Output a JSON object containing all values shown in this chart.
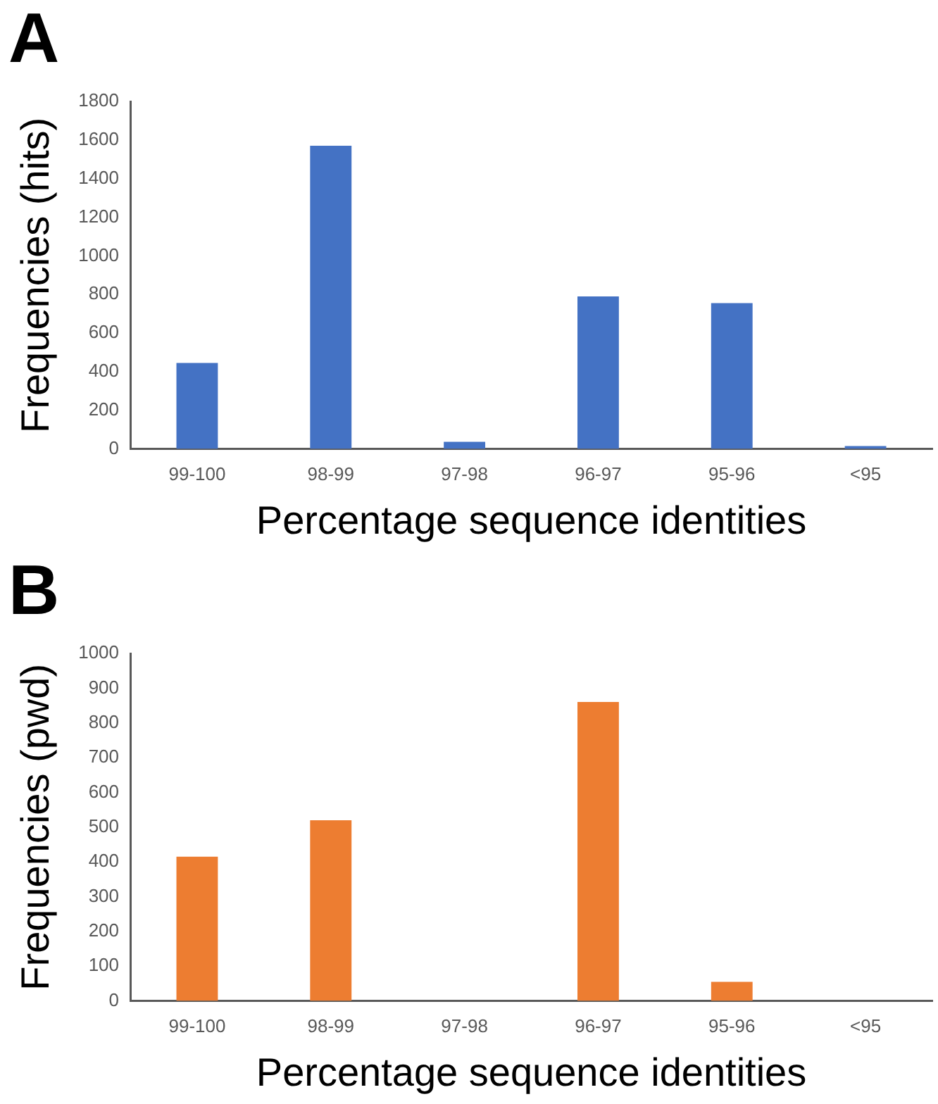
{
  "chart_data": [
    {
      "type": "bar",
      "title": "A",
      "xlabel": "Percentage sequence identities",
      "ylabel": "Frequencies (hits)",
      "categories": [
        "99-100",
        "98-99",
        "97-98",
        "96-97",
        "95-96",
        "<95"
      ],
      "values": [
        445,
        1570,
        37,
        790,
        755,
        15
      ],
      "color": "#4472c4",
      "ylim": [
        0,
        1800
      ],
      "yticks": [
        0,
        200,
        400,
        600,
        800,
        1000,
        1200,
        1400,
        1600,
        1800
      ]
    },
    {
      "type": "bar",
      "title": "B",
      "xlabel": "Percentage sequence identities",
      "ylabel": "Frequencies (pwd)",
      "categories": [
        "99-100",
        "98-99",
        "97-98",
        "96-97",
        "95-96",
        "<95"
      ],
      "values": [
        415,
        520,
        0,
        860,
        55,
        0
      ],
      "color": "#ed7d31",
      "ylim": [
        0,
        1000
      ],
      "yticks": [
        0,
        100,
        200,
        300,
        400,
        500,
        600,
        700,
        800,
        900,
        1000
      ]
    }
  ]
}
